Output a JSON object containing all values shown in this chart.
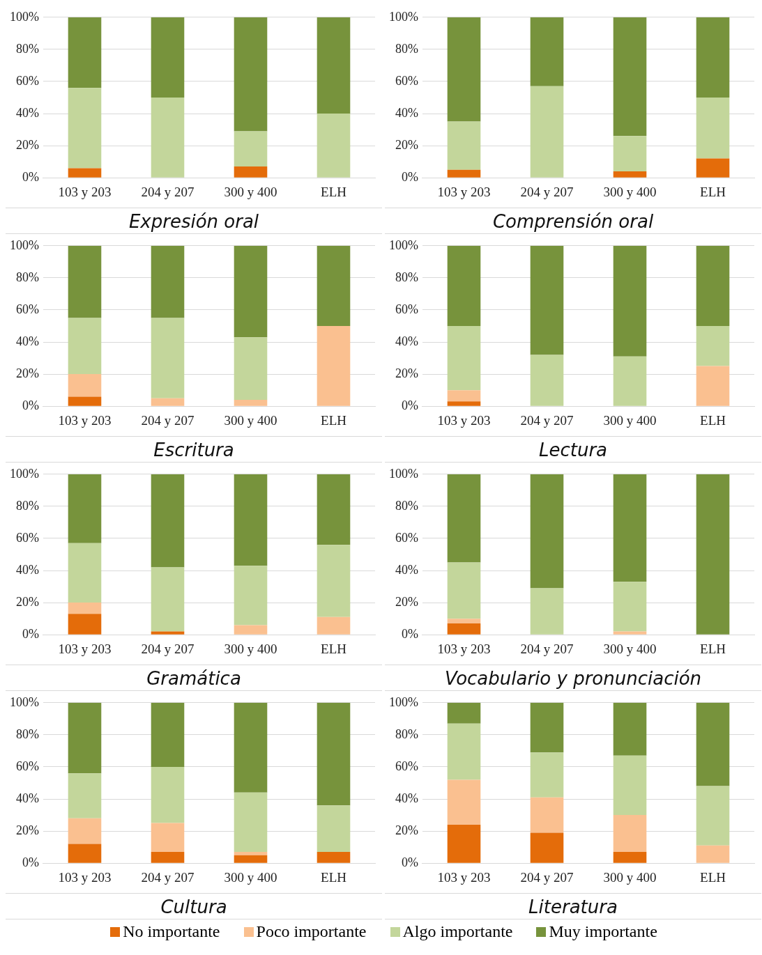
{
  "chart_data": [
    {
      "type": "bar",
      "title": "Expresión oral",
      "stacked": true,
      "categories": [
        "103 y 203",
        "204 y 207",
        "300 y 400",
        "ELH"
      ],
      "ylim": [
        0,
        100
      ],
      "yticks": [
        {
          "value": 0,
          "label": "0%"
        },
        {
          "value": 20,
          "label": "20%"
        },
        {
          "value": 40,
          "label": "40%"
        },
        {
          "value": 60,
          "label": "60%"
        },
        {
          "value": 80,
          "label": "80%"
        },
        {
          "value": 100,
          "label": "100%"
        }
      ],
      "grid": "y",
      "series": [
        {
          "color": "#e46c0a",
          "values": [
            6,
            0,
            7,
            0
          ]
        },
        {
          "color": "#fac090",
          "values": [
            0,
            0,
            0,
            0
          ]
        },
        {
          "color": "#c3d69b",
          "values": [
            50,
            50,
            22,
            40
          ]
        },
        {
          "color": "#77933c",
          "values": [
            44,
            50,
            71,
            60
          ]
        }
      ]
    },
    {
      "type": "bar",
      "title": "Comprensión oral",
      "stacked": true,
      "categories": [
        "103 y 203",
        "204 y 207",
        "300 y 400",
        "ELH"
      ],
      "ylim": [
        0,
        100
      ],
      "yticks": [
        {
          "value": 0,
          "label": "0%"
        },
        {
          "value": 20,
          "label": "20%"
        },
        {
          "value": 40,
          "label": "40%"
        },
        {
          "value": 60,
          "label": "60%"
        },
        {
          "value": 80,
          "label": "80%"
        },
        {
          "value": 100,
          "label": "100%"
        }
      ],
      "grid": "y",
      "series": [
        {
          "color": "#e46c0a",
          "values": [
            5,
            0,
            4,
            12
          ]
        },
        {
          "color": "#fac090",
          "values": [
            0,
            0,
            0,
            0
          ]
        },
        {
          "color": "#c3d69b",
          "values": [
            30,
            57,
            22,
            38
          ]
        },
        {
          "color": "#77933c",
          "values": [
            65,
            43,
            74,
            50
          ]
        }
      ]
    },
    {
      "type": "bar",
      "title": "Escritura",
      "stacked": true,
      "categories": [
        "103 y 203",
        "204 y 207",
        "300 y 400",
        "ELH"
      ],
      "ylim": [
        0,
        100
      ],
      "yticks": [
        {
          "value": 0,
          "label": "0%"
        },
        {
          "value": 20,
          "label": "20%"
        },
        {
          "value": 40,
          "label": "40%"
        },
        {
          "value": 60,
          "label": "60%"
        },
        {
          "value": 80,
          "label": "80%"
        },
        {
          "value": 100,
          "label": "100%"
        }
      ],
      "grid": "y",
      "series": [
        {
          "color": "#e46c0a",
          "values": [
            6,
            0,
            0,
            0
          ]
        },
        {
          "color": "#fac090",
          "values": [
            14,
            5,
            4,
            50
          ]
        },
        {
          "color": "#c3d69b",
          "values": [
            35,
            50,
            39,
            0
          ]
        },
        {
          "color": "#77933c",
          "values": [
            45,
            45,
            57,
            50
          ]
        }
      ]
    },
    {
      "type": "bar",
      "title": "Lectura",
      "stacked": true,
      "categories": [
        "103 y 203",
        "204 y 207",
        "300 y 400",
        "ELH"
      ],
      "ylim": [
        0,
        100
      ],
      "yticks": [
        {
          "value": 0,
          "label": "0%"
        },
        {
          "value": 20,
          "label": "20%"
        },
        {
          "value": 40,
          "label": "40%"
        },
        {
          "value": 60,
          "label": "60%"
        },
        {
          "value": 80,
          "label": "80%"
        },
        {
          "value": 100,
          "label": "100%"
        }
      ],
      "grid": "y",
      "series": [
        {
          "color": "#e46c0a",
          "values": [
            3,
            0,
            0,
            0
          ]
        },
        {
          "color": "#fac090",
          "values": [
            7,
            0,
            0,
            25
          ]
        },
        {
          "color": "#c3d69b",
          "values": [
            40,
            32,
            31,
            25
          ]
        },
        {
          "color": "#77933c",
          "values": [
            50,
            68,
            69,
            50
          ]
        }
      ]
    },
    {
      "type": "bar",
      "title": "Gramática",
      "stacked": true,
      "categories": [
        "103 y 203",
        "204 y 207",
        "300 y 400",
        "ELH"
      ],
      "ylim": [
        0,
        100
      ],
      "yticks": [
        {
          "value": 0,
          "label": "0%"
        },
        {
          "value": 20,
          "label": "20%"
        },
        {
          "value": 40,
          "label": "40%"
        },
        {
          "value": 60,
          "label": "60%"
        },
        {
          "value": 80,
          "label": "80%"
        },
        {
          "value": 100,
          "label": "100%"
        }
      ],
      "grid": "y",
      "series": [
        {
          "color": "#e46c0a",
          "values": [
            13,
            2,
            0,
            0
          ]
        },
        {
          "color": "#fac090",
          "values": [
            7,
            0,
            6,
            11
          ]
        },
        {
          "color": "#c3d69b",
          "values": [
            37,
            40,
            37,
            45
          ]
        },
        {
          "color": "#77933c",
          "values": [
            43,
            58,
            57,
            44
          ]
        }
      ]
    },
    {
      "type": "bar",
      "title": "Vocabulario y pronunciación",
      "stacked": true,
      "categories": [
        "103 y 203",
        "204 y 207",
        "300 y 400",
        "ELH"
      ],
      "ylim": [
        0,
        100
      ],
      "yticks": [
        {
          "value": 0,
          "label": "0%"
        },
        {
          "value": 20,
          "label": "20%"
        },
        {
          "value": 40,
          "label": "40%"
        },
        {
          "value": 60,
          "label": "60%"
        },
        {
          "value": 80,
          "label": "80%"
        },
        {
          "value": 100,
          "label": "100%"
        }
      ],
      "grid": "y",
      "series": [
        {
          "color": "#e46c0a",
          "values": [
            7,
            0,
            0,
            0
          ]
        },
        {
          "color": "#fac090",
          "values": [
            3,
            0,
            2,
            0
          ]
        },
        {
          "color": "#c3d69b",
          "values": [
            35,
            29,
            31,
            0
          ]
        },
        {
          "color": "#77933c",
          "values": [
            55,
            71,
            67,
            100
          ]
        }
      ]
    },
    {
      "type": "bar",
      "title": "Cultura",
      "stacked": true,
      "categories": [
        "103 y 203",
        "204 y 207",
        "300 y 400",
        "ELH"
      ],
      "ylim": [
        0,
        100
      ],
      "yticks": [
        {
          "value": 0,
          "label": "0%"
        },
        {
          "value": 20,
          "label": "20%"
        },
        {
          "value": 40,
          "label": "40%"
        },
        {
          "value": 60,
          "label": "60%"
        },
        {
          "value": 80,
          "label": "80%"
        },
        {
          "value": 100,
          "label": "100%"
        }
      ],
      "grid": "y",
      "series": [
        {
          "color": "#e46c0a",
          "values": [
            12,
            7,
            5,
            7
          ]
        },
        {
          "color": "#fac090",
          "values": [
            16,
            18,
            2,
            0
          ]
        },
        {
          "color": "#c3d69b",
          "values": [
            28,
            35,
            37,
            29
          ]
        },
        {
          "color": "#77933c",
          "values": [
            44,
            40,
            56,
            64
          ]
        }
      ]
    },
    {
      "type": "bar",
      "title": "Literatura",
      "stacked": true,
      "legend": "bottom",
      "categories": [
        "103 y 203",
        "204 y 207",
        "300 y 400",
        "ELH"
      ],
      "ylim": [
        0,
        100
      ],
      "yticks": [
        {
          "value": 0,
          "label": "0%"
        },
        {
          "value": 20,
          "label": "20%"
        },
        {
          "value": 40,
          "label": "40%"
        },
        {
          "value": 60,
          "label": "60%"
        },
        {
          "value": 80,
          "label": "80%"
        },
        {
          "value": 100,
          "label": "100%"
        }
      ],
      "grid": "y",
      "series": [
        {
          "name": "No importante",
          "color": "#e46c0a",
          "values": [
            24,
            19,
            7,
            0
          ]
        },
        {
          "name": "Poco importante",
          "color": "#fac090",
          "values": [
            28,
            22,
            23,
            11
          ]
        },
        {
          "name": "Algo importante",
          "color": "#c3d69b",
          "values": [
            35,
            28,
            37,
            37
          ]
        },
        {
          "name": "Muy importante",
          "color": "#77933c",
          "values": [
            13,
            31,
            33,
            52
          ]
        }
      ]
    }
  ]
}
